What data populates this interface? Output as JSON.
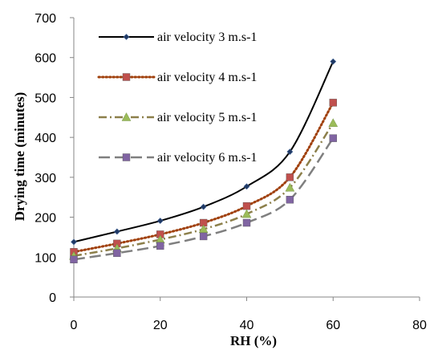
{
  "chart_data": {
    "type": "line",
    "xlabel": "RH (%)",
    "ylabel": "Drying time (minutes)",
    "xlim": [
      0,
      80
    ],
    "ylim": [
      0,
      700
    ],
    "xticks": [
      "0",
      "20",
      "40",
      "60",
      "80"
    ],
    "yticks": [
      "0",
      "100",
      "200",
      "300",
      "400",
      "500",
      "600",
      "700"
    ],
    "grid": false,
    "legend_position": "top-left",
    "x": [
      0,
      10,
      20,
      30,
      40,
      50,
      60
    ],
    "series": [
      {
        "name": "air velocity 3 m.s-1",
        "values": [
          138,
          164,
          191,
          226,
          277,
          364,
          590
        ],
        "color": "#000000",
        "dash": "solid",
        "marker": "diamond",
        "marker_color": "#1F3864"
      },
      {
        "name": "air velocity 4 m.s-1",
        "values": [
          113,
          134,
          157,
          186,
          228,
          300,
          487
        ],
        "color": "#A0400C",
        "dash": "dotted",
        "marker": "square",
        "marker_color": "#C0504D"
      },
      {
        "name": "air velocity 5 m.s-1",
        "values": [
          103,
          122,
          144,
          170,
          208,
          274,
          436
        ],
        "color": "#8C7F4A",
        "dash": "dashdot",
        "marker": "triangle",
        "marker_color": "#9BBB59"
      },
      {
        "name": "air velocity 6 m.s-1",
        "values": [
          94,
          110,
          128,
          152,
          186,
          244,
          398
        ],
        "color": "#7F7F7F",
        "dash": "longdash",
        "marker": "square",
        "marker_color": "#8064A2"
      }
    ]
  }
}
